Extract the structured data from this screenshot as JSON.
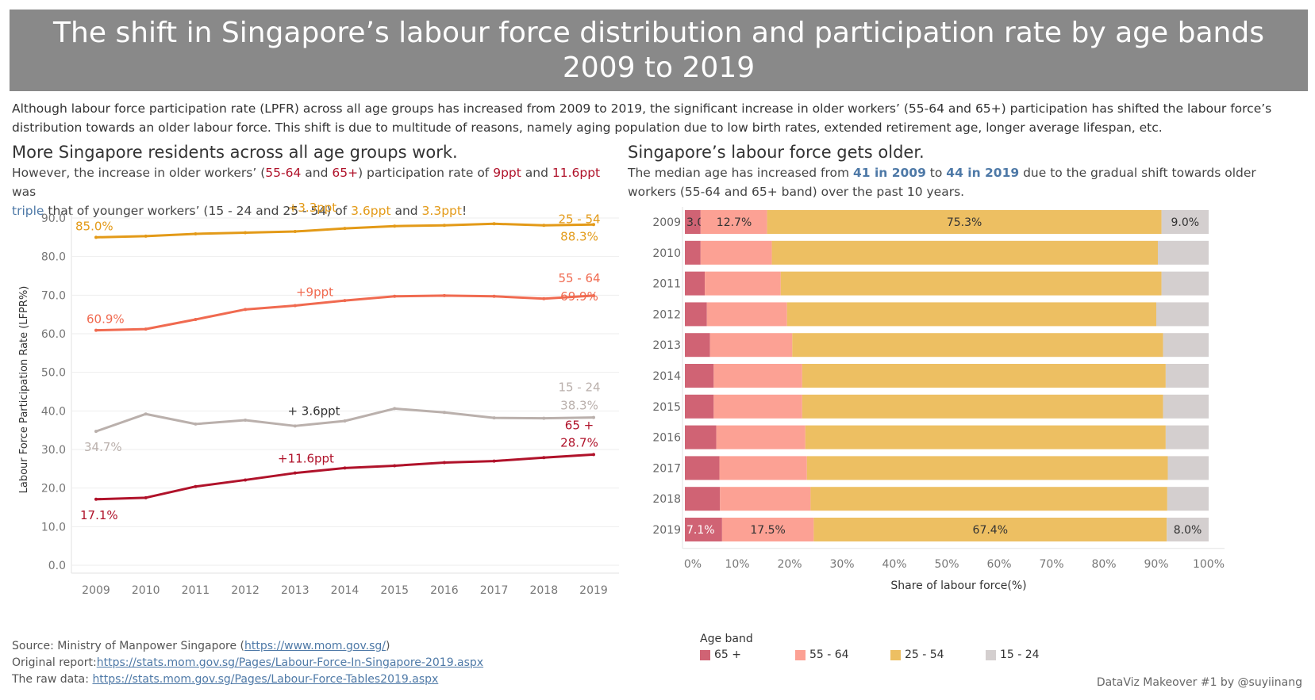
{
  "banner": {
    "line1": "The shift in Singapore’s labour force distribution and participation rate by age bands",
    "line2": "2009 to 2019"
  },
  "intro": "Although labour force participation rate (LPFR) across all age groups has increased from 2009 to 2019, the significant increase in older workers’ (55-64 and 65+) participation has shifted the labour force’s distribution towards an older labour force. This shift is due to multitude of reasons, namely aging population due to low birth rates, extended retirement age, longer average lifespan, etc.",
  "left": {
    "title": "More Singapore residents across all age groups work.",
    "sub": {
      "p1": "However, the increase in older workers’ (",
      "h1": "55-64",
      "p2": " and ",
      "h2": "65+",
      "p3": ") participation rate of ",
      "h3": "9ppt",
      "p4": " and ",
      "h4": "11.6ppt",
      "p5": " was",
      "h5": "triple",
      "p6": " that of younger workers’ (15 - 24 and 25 - 54) of ",
      "h6": "3.6ppt",
      "p7": " and ",
      "h7": "3.3ppt",
      "p8": "!"
    }
  },
  "right": {
    "title": "Singapore’s labour force gets older.",
    "sub": {
      "p1": "The median age has increased from ",
      "h1": "41 in 2009",
      "p2": " to ",
      "h2": "44 in 2019",
      "p3": " due to the gradual shift towards older",
      "p4": "workers (55-64 and 65+ band) over the past 10 years."
    }
  },
  "chart_data": [
    {
      "type": "line",
      "ylabel": "Labour Force Participation Rate (LFPR%)",
      "xlabel": "",
      "ylim": [
        0,
        90
      ],
      "yticks": [
        "0.0",
        "10.0",
        "20.0",
        "30.0",
        "40.0",
        "50.0",
        "60.0",
        "70.0",
        "80.0",
        "90.0"
      ],
      "x": [
        "2009",
        "2010",
        "2011",
        "2012",
        "2013",
        "2014",
        "2015",
        "2016",
        "2017",
        "2018",
        "2019"
      ],
      "series": [
        {
          "name": "25 - 54",
          "color": "#e39a18",
          "values": [
            85.0,
            85.3,
            85.9,
            86.2,
            86.5,
            87.3,
            87.9,
            88.1,
            88.5,
            88.1,
            88.3
          ],
          "start_label": "85.0%",
          "end_label": "88.3%",
          "change_label": "+3.3ppt"
        },
        {
          "name": "55 - 64",
          "color": "#f06a50",
          "values": [
            60.9,
            61.2,
            63.7,
            66.3,
            67.3,
            68.6,
            69.7,
            69.9,
            69.7,
            69.1,
            69.9
          ],
          "start_label": "60.9%",
          "end_label": "69.9%",
          "change_label": "+9ppt"
        },
        {
          "name": "15 - 24",
          "color": "#bab0ac",
          "values": [
            34.7,
            39.2,
            36.6,
            37.6,
            36.1,
            37.4,
            40.6,
            39.6,
            38.2,
            38.1,
            38.3
          ],
          "start_label": "34.7%",
          "end_label": "38.3%",
          "change_label": "+ 3.6ppt"
        },
        {
          "name": "65 +",
          "color": "#b0122a",
          "values": [
            17.1,
            17.5,
            20.4,
            22.1,
            23.9,
            25.2,
            25.8,
            26.6,
            27.0,
            27.9,
            28.7
          ],
          "start_label": "17.1%",
          "end_label": "28.7%",
          "change_label": "+11.6ppt"
        }
      ]
    },
    {
      "type": "bar",
      "orientation": "horizontal",
      "stacked": true,
      "xlabel": "Share of labour force(%)",
      "xlim": [
        0,
        100
      ],
      "xticks": [
        "0%",
        "10%",
        "20%",
        "30%",
        "40%",
        "50%",
        "60%",
        "70%",
        "80%",
        "90%",
        "100%"
      ],
      "categories": [
        "2009",
        "2010",
        "2011",
        "2012",
        "2013",
        "2014",
        "2015",
        "2016",
        "2017",
        "2018",
        "2019"
      ],
      "series": [
        {
          "name": "65 +",
          "color": "#d06374",
          "values": [
            3.0,
            3.0,
            3.8,
            4.2,
            4.8,
            5.5,
            5.5,
            6.0,
            6.6,
            6.7,
            7.1
          ]
        },
        {
          "name": "55 - 64",
          "color": "#fca194",
          "values": [
            12.7,
            13.6,
            14.5,
            15.3,
            15.7,
            16.9,
            16.9,
            17.0,
            16.7,
            17.3,
            17.5
          ]
        },
        {
          "name": "25 - 54",
          "color": "#edbf62",
          "values": [
            75.3,
            73.7,
            72.7,
            70.5,
            70.8,
            69.4,
            68.9,
            68.8,
            68.9,
            68.1,
            67.4
          ]
        },
        {
          "name": "15 - 24",
          "color": "#d4cfcf",
          "values": [
            9.0,
            9.7,
            9.0,
            10.0,
            8.7,
            8.2,
            8.7,
            8.2,
            7.8,
            7.9,
            8.0
          ]
        }
      ],
      "shown_labels": {
        "2009": [
          "3.0%",
          "12.7%",
          "75.3%",
          "9.0%"
        ],
        "2019": [
          "7.1%",
          "17.5%",
          "67.4%",
          "8.0%"
        ]
      },
      "legend_title": "Age band",
      "legend": [
        "65 +",
        "55 - 64",
        "25 - 54",
        "15 - 24"
      ],
      "legend_position": "bottom"
    }
  ],
  "source": {
    "line1_prefix": "Source: Ministry of Manpower Singapore (",
    "line1_link": "https://www.mom.gov.sg/",
    "line1_suffix": ")",
    "line2_prefix": "Original report:",
    "line2_link": "https://stats.mom.gov.sg/Pages/Labour-Force-In-Singapore-2019.aspx",
    "line3_prefix": "The raw data: ",
    "line3_link": "https://stats.mom.gov.sg/Pages/Labour-Force-Tables2019.aspx"
  },
  "credit": "DataViz Makeover #1 by @suyiinang"
}
